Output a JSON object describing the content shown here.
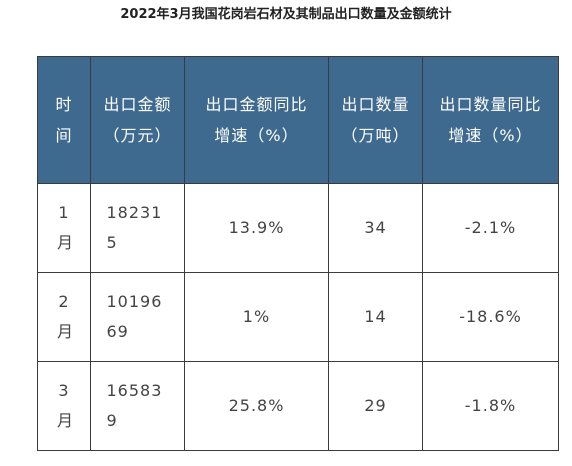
{
  "title": "2022年3月我国花岗岩石材及其制品出口数量及金额统计",
  "table": {
    "headers": [
      "时间",
      "出口金额（万元）",
      "出口金额同比增速（%）",
      "出口数量（万吨）",
      "出口数量同比增速（%）"
    ],
    "rows": [
      [
        "1月",
        "182315",
        "13.9%",
        "34",
        "-2.1%"
      ],
      [
        "2月",
        "1019669",
        "1%",
        "14",
        "-18.6%"
      ],
      [
        "3月",
        "165839",
        "25.8%",
        "29",
        "-1.8%"
      ]
    ]
  },
  "colors": {
    "header_bg": "#3f6a8f",
    "header_text": "#ffffff",
    "border": "#3b3b3b"
  }
}
